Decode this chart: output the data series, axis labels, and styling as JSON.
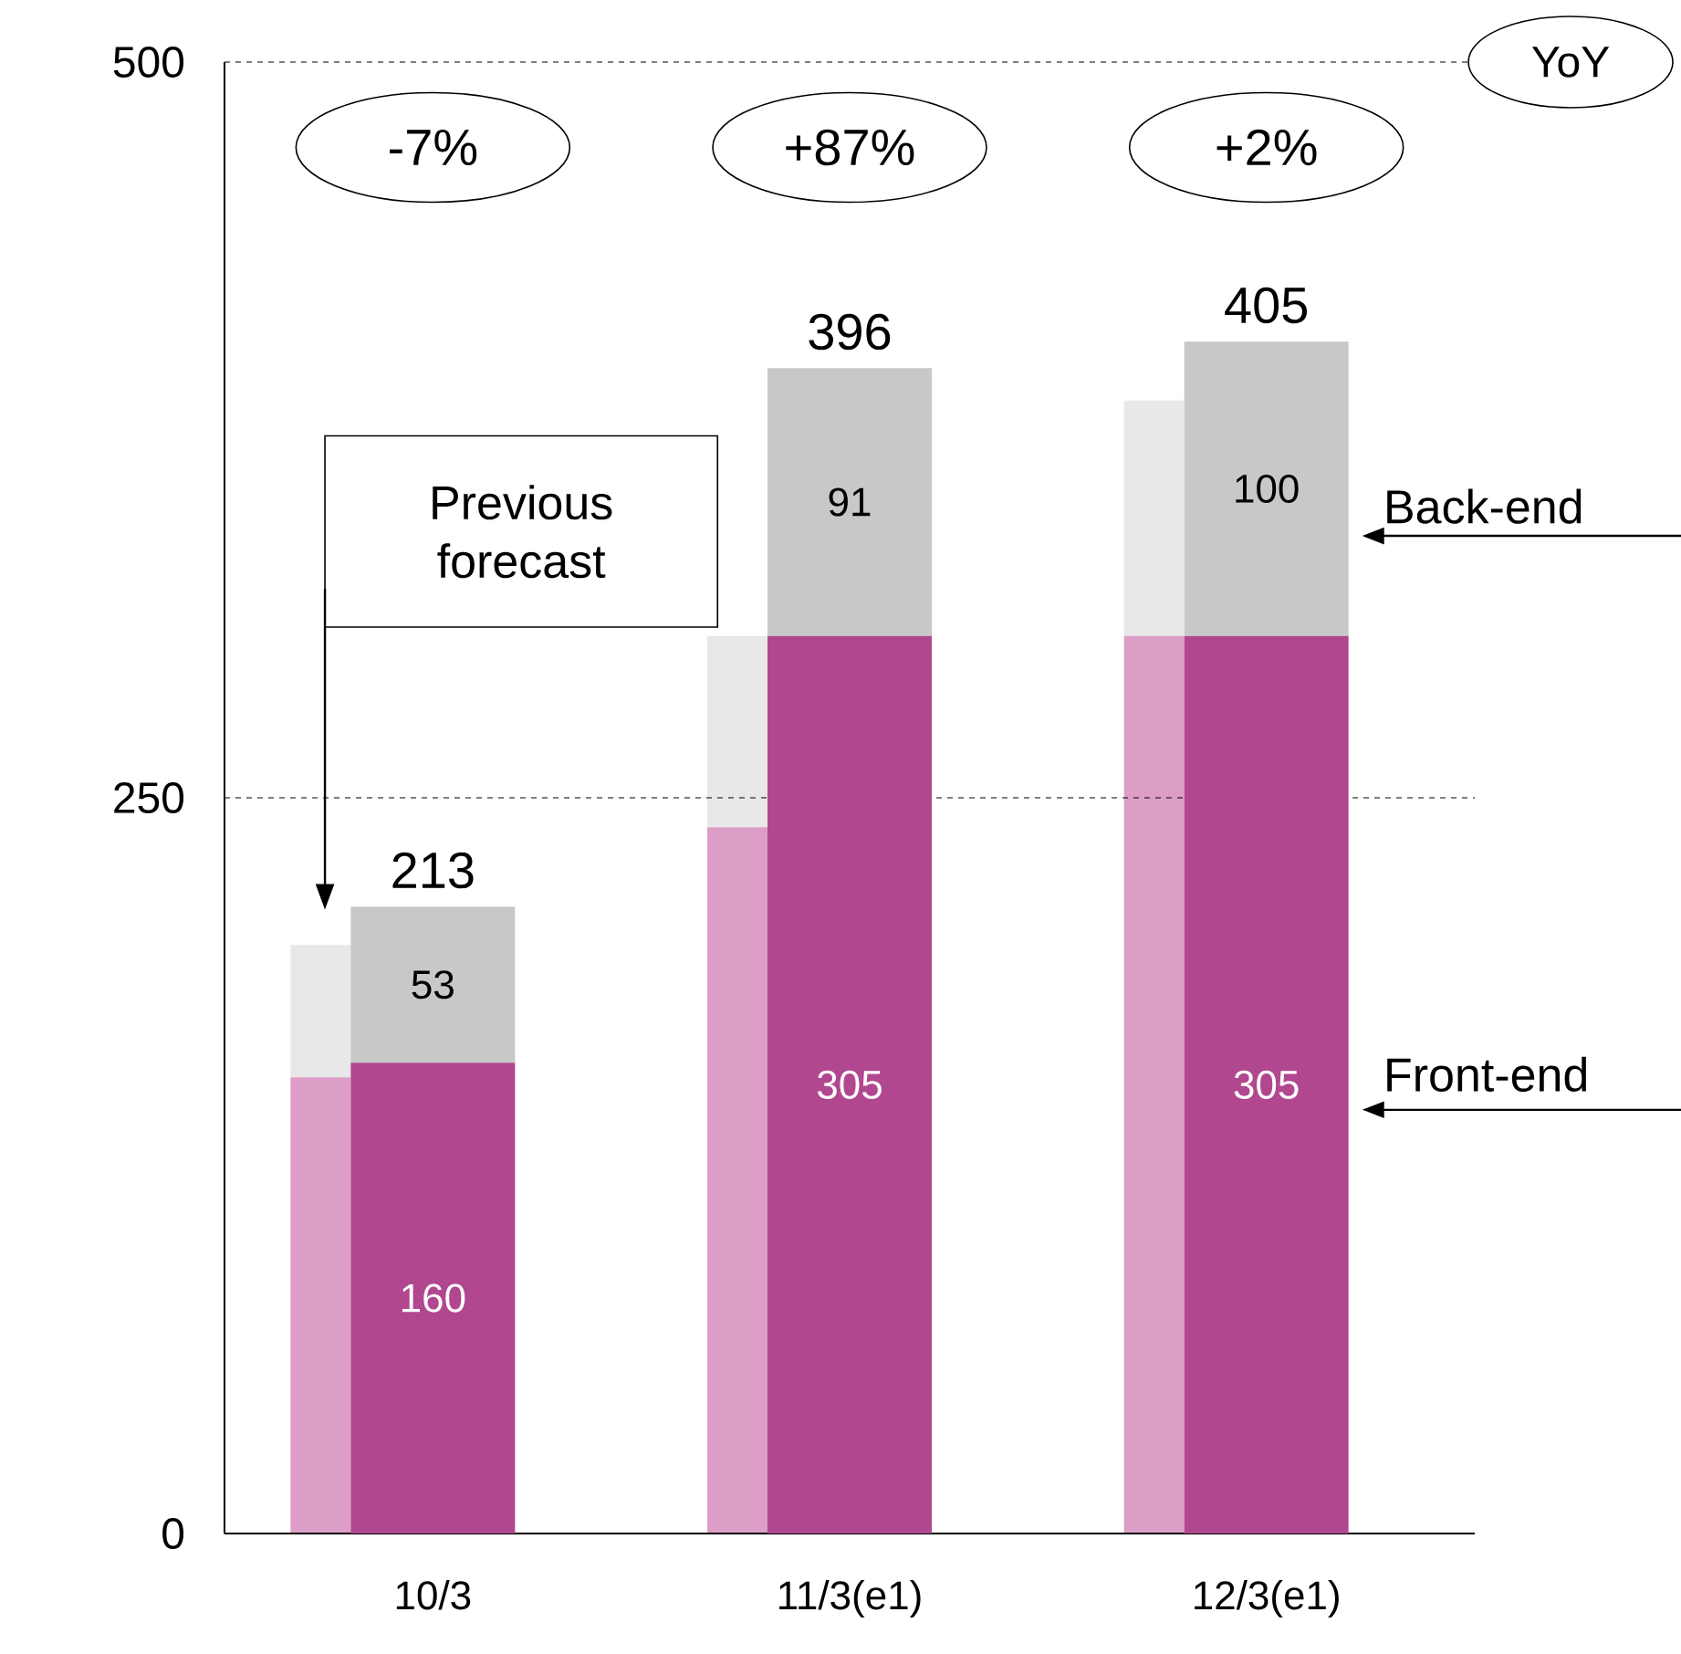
{
  "chart_data": [
    {
      "type": "bar",
      "stacked": true,
      "categories": [
        "10/3",
        "11/3(e1)",
        "12/3(e1)"
      ],
      "series": [
        {
          "name": "Front-end",
          "color": "#b0478f",
          "values": [
            160,
            305,
            305
          ],
          "value_labels": [
            "160",
            "305",
            "305"
          ]
        },
        {
          "name": "Back-end",
          "color": "#c8c8c8",
          "values": [
            53,
            91,
            100
          ],
          "value_labels": [
            "53",
            "91",
            "100"
          ]
        }
      ],
      "totals": [
        "213",
        "396",
        "405"
      ],
      "ylim": [
        0,
        500
      ],
      "yticks": [
        0,
        250,
        500
      ],
      "grid": "y",
      "annotations": [
        "YoY",
        "-7%",
        "+87%",
        "+2%"
      ]
    },
    {
      "type": "bar",
      "stacked": true,
      "categories": [
        null,
        null,
        null
      ],
      "series": [
        {
          "color": "#dc9ec6",
          "values": [
            155,
            240,
            305
          ]
        },
        {
          "color": "#e8e8e8",
          "values": [
            45,
            65,
            80
          ]
        }
      ],
      "ylim": [
        0,
        500
      ],
      "annotations": [
        "Previous forecast"
      ]
    }
  ]
}
